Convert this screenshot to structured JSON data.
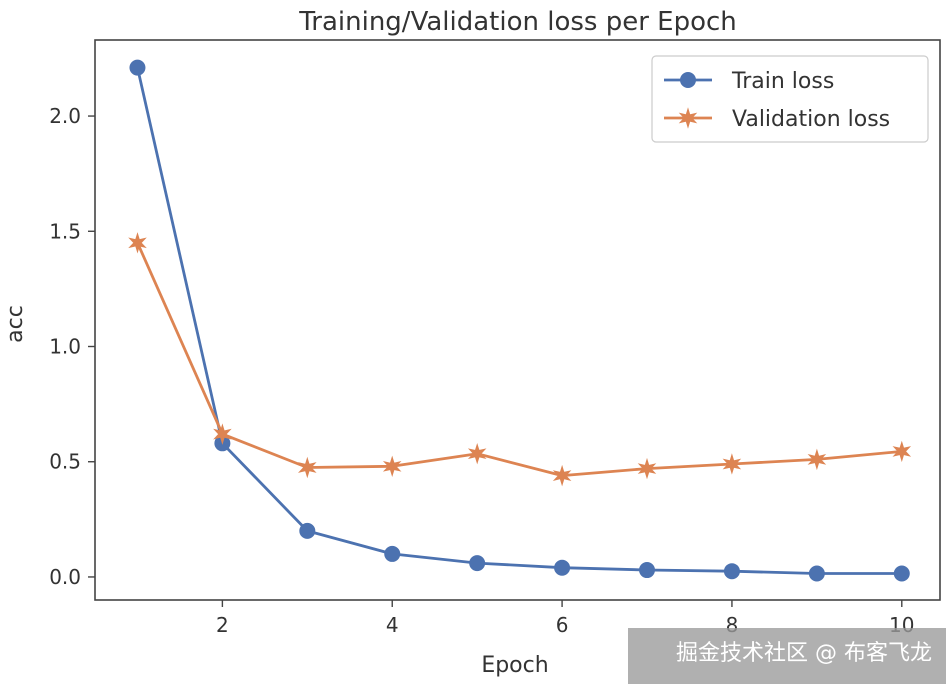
{
  "chart_data": {
    "type": "line",
    "title": "Training/Validation loss per Epoch",
    "xlabel": "Epoch",
    "ylabel": "acc",
    "x": [
      1,
      2,
      3,
      4,
      5,
      6,
      7,
      8,
      9,
      10
    ],
    "xlim": [
      0.5,
      10.45
    ],
    "ylim": [
      -0.1,
      2.33
    ],
    "xticks": [
      2,
      4,
      6,
      8,
      10
    ],
    "yticks": [
      0.0,
      0.5,
      1.0,
      1.5,
      2.0
    ],
    "ytick_labels": [
      "0.0",
      "0.5",
      "1.0",
      "1.5",
      "2.0"
    ],
    "grid": false,
    "legend_position": "top-right",
    "series": [
      {
        "name": "Train loss",
        "color": "#4c72b0",
        "marker": "circle",
        "values": [
          2.21,
          0.58,
          0.2,
          0.1,
          0.06,
          0.04,
          0.03,
          0.025,
          0.015,
          0.015
        ]
      },
      {
        "name": "Validation loss",
        "color": "#dd8452",
        "marker": "star",
        "values": [
          1.45,
          0.62,
          0.475,
          0.48,
          0.535,
          0.44,
          0.47,
          0.49,
          0.51,
          0.545
        ]
      }
    ]
  },
  "watermark": "掘金技术社区 @ 布客飞龙"
}
